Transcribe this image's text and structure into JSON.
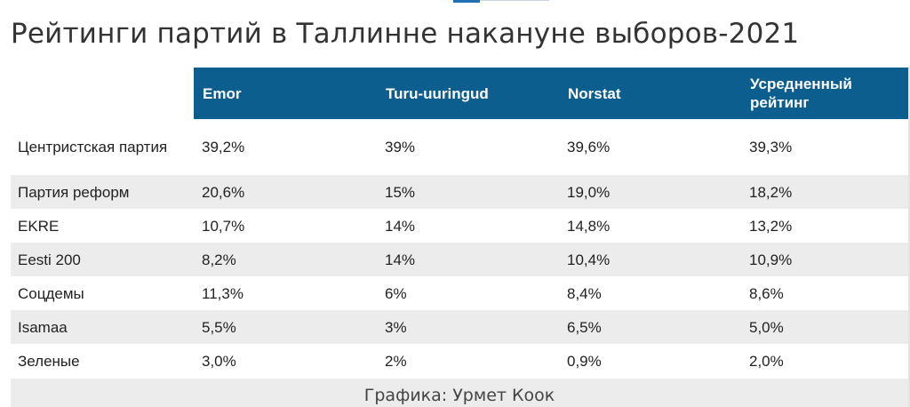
{
  "chart_data": {
    "type": "table",
    "title": "Рейтинги партий в Таллинне накануне выборов-2021",
    "columns": [
      "Emor",
      "Turu-uuringud",
      "Norstat",
      "Усредненный рейтинг"
    ],
    "rows": [
      {
        "party": "Центристская партия",
        "values": [
          "39,2%",
          "39%",
          "39,6%",
          "39,3%"
        ]
      },
      {
        "party": "Партия реформ",
        "values": [
          "20,6%",
          "15%",
          "19,0%",
          "18,2%"
        ]
      },
      {
        "party": "EKRE",
        "values": [
          "10,7%",
          "14%",
          "14,8%",
          "13,2%"
        ]
      },
      {
        "party": "Eesti 200",
        "values": [
          "8,2%",
          "14%",
          "10,4%",
          "10,9%"
        ]
      },
      {
        "party": "Соцдемы",
        "values": [
          "11,3%",
          "6%",
          "8,4%",
          "8,6%"
        ]
      },
      {
        "party": "Isamaa",
        "values": [
          "5,5%",
          "3%",
          "6,5%",
          "5,0%"
        ]
      },
      {
        "party": "Зеленые",
        "values": [
          "3,0%",
          "2%",
          "0,9%",
          "2,0%"
        ]
      }
    ],
    "credit": "Графика: Урмет Коок",
    "colors": {
      "header_bg": "#0c5e8f",
      "header_text": "#ffffff",
      "stripe": "#ececec"
    }
  }
}
